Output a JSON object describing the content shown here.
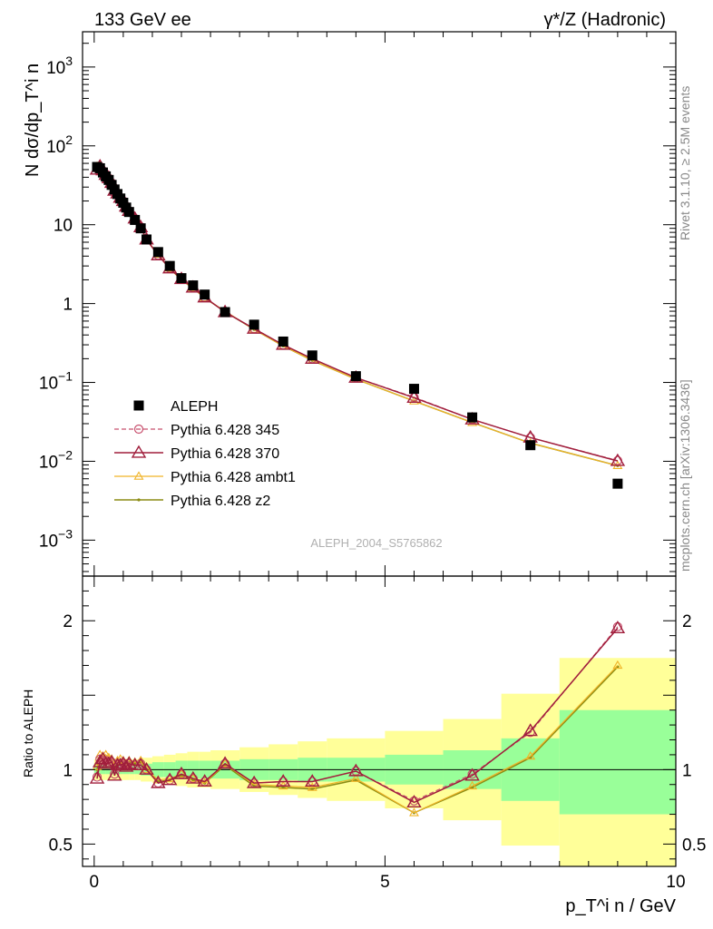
{
  "header": {
    "left_label": "133 GeV ee",
    "right_label": "γ*/Z (Hadronic)"
  },
  "side_labels": {
    "rivet": "Rivet 3.1.10, ≥ 2.5M events",
    "mcplots": "mcplots.cern.ch [arXiv:1306.3436]"
  },
  "watermark": "ALEPH_2004_S5765862",
  "colors": {
    "data": "#000000",
    "p345": "#c8506e",
    "p370": "#a01e3c",
    "ambt1": "#f0b428",
    "z2": "#8c8c14",
    "band_inner": "#99ff99",
    "band_outer": "#ffff99"
  },
  "chart_data": [
    {
      "type": "scatter",
      "panel": "main",
      "ylabel": "N dσ/dp_T^i n",
      "yscale": "log",
      "xlim": [
        -0.2,
        10.0
      ],
      "ylim": [
        0.00035,
        2800
      ],
      "ytick_labels": [
        "10^-3",
        "10^-2",
        "10^-1",
        "1",
        "10",
        "10^2",
        "10^3"
      ],
      "legend": {
        "placement": "lower-left",
        "entries": [
          "ALEPH",
          "Pythia 6.428 345",
          "Pythia 6.428 370",
          "Pythia 6.428 ambt1",
          "Pythia 6.428 z2"
        ]
      },
      "series": [
        {
          "name": "ALEPH",
          "x": [
            0.05,
            0.1,
            0.15,
            0.2,
            0.25,
            0.3,
            0.35,
            0.4,
            0.45,
            0.5,
            0.55,
            0.6,
            0.7,
            0.8,
            0.9,
            1.1,
            1.3,
            1.5,
            1.7,
            1.9,
            2.25,
            2.75,
            3.25,
            3.75,
            4.5,
            5.5,
            6.5,
            7.5,
            9.0
          ],
          "y": [
            54,
            52,
            46,
            41,
            37,
            32,
            28,
            24.5,
            21.5,
            19,
            16.5,
            14.5,
            11.5,
            9.0,
            6.5,
            4.5,
            3.0,
            2.1,
            1.7,
            1.3,
            0.78,
            0.54,
            0.33,
            0.22,
            0.12,
            0.083,
            0.036,
            0.016,
            0.0052
          ]
        },
        {
          "name": "Pythia 6.428 345",
          "x": [
            0.05,
            0.1,
            0.15,
            0.2,
            0.25,
            0.3,
            0.35,
            0.4,
            0.45,
            0.5,
            0.55,
            0.6,
            0.7,
            0.8,
            0.9,
            1.1,
            1.3,
            1.5,
            1.7,
            1.9,
            2.25,
            2.75,
            3.25,
            3.75,
            4.5,
            5.5,
            6.5,
            7.5,
            9.0
          ],
          "y": [
            51,
            54,
            48,
            44,
            39,
            34,
            28,
            25,
            22,
            20,
            17,
            15,
            12,
            9.4,
            6.5,
            4.1,
            2.8,
            2.05,
            1.6,
            1.2,
            0.78,
            0.48,
            0.3,
            0.2,
            0.115,
            0.065,
            0.034,
            0.02,
            0.0102
          ]
        },
        {
          "name": "Pythia 6.428 370",
          "x": [
            0.05,
            0.1,
            0.15,
            0.2,
            0.25,
            0.3,
            0.35,
            0.4,
            0.45,
            0.5,
            0.55,
            0.6,
            0.7,
            0.8,
            0.9,
            1.1,
            1.3,
            1.5,
            1.7,
            1.9,
            2.25,
            2.75,
            3.25,
            3.75,
            4.5,
            5.5,
            6.5,
            7.5,
            9.0
          ],
          "y": [
            50,
            55,
            49,
            43,
            39,
            34,
            27,
            25,
            22,
            20,
            17,
            15,
            12,
            9.3,
            6.5,
            4.1,
            2.8,
            2.05,
            1.6,
            1.2,
            0.78,
            0.48,
            0.3,
            0.2,
            0.115,
            0.064,
            0.034,
            0.02,
            0.0101
          ]
        },
        {
          "name": "Pythia 6.428 ambt1",
          "x": [
            0.05,
            0.1,
            0.15,
            0.2,
            0.25,
            0.3,
            0.35,
            0.4,
            0.45,
            0.5,
            0.55,
            0.6,
            0.7,
            0.8,
            0.9,
            1.1,
            1.3,
            1.5,
            1.7,
            1.9,
            2.25,
            2.75,
            3.25,
            3.75,
            4.5,
            5.5,
            6.5,
            7.5,
            9.0
          ],
          "y": [
            55,
            57,
            50,
            45,
            40,
            34,
            29,
            26,
            23,
            20,
            17,
            15,
            12,
            9.4,
            6.5,
            4.2,
            2.8,
            2.0,
            1.58,
            1.18,
            0.8,
            0.47,
            0.29,
            0.19,
            0.11,
            0.058,
            0.031,
            0.017,
            0.0088
          ]
        },
        {
          "name": "Pythia 6.428 z2",
          "x": [
            0.05,
            0.1,
            0.15,
            0.2,
            0.25,
            0.3,
            0.35,
            0.4,
            0.45,
            0.5,
            0.55,
            0.6,
            0.7,
            0.8,
            0.9,
            1.1,
            1.3,
            1.5,
            1.7,
            1.9,
            2.25,
            2.75,
            3.25,
            3.75,
            4.5,
            5.5,
            6.5,
            7.5,
            9.0
          ],
          "y": [
            54,
            56,
            49,
            44,
            40,
            34,
            28,
            25.5,
            22.5,
            20,
            17,
            15,
            12,
            9.3,
            6.5,
            4.1,
            2.8,
            2.0,
            1.57,
            1.18,
            0.79,
            0.47,
            0.29,
            0.19,
            0.11,
            0.058,
            0.031,
            0.017,
            0.0088
          ]
        }
      ]
    },
    {
      "type": "line",
      "panel": "ratio",
      "xlabel": "p_T^i n / GeV",
      "ylabel": "Ratio to ALEPH",
      "xlim": [
        -0.2,
        10.0
      ],
      "ylim": [
        0.35,
        2.3
      ],
      "xtick_labels": [
        "0",
        "5",
        "10"
      ],
      "ytick_labels": [
        "0.5",
        "1",
        "2"
      ],
      "reference_line": 1.0,
      "uncertainty_bands": {
        "edges": [
          0,
          0.1,
          0.2,
          0.3,
          0.4,
          0.5,
          0.6,
          0.7,
          0.8,
          1.0,
          1.2,
          1.4,
          1.6,
          1.8,
          2.0,
          2.5,
          3.0,
          3.5,
          4.0,
          5.0,
          6.0,
          7.0,
          8.0,
          10.0
        ],
        "inner_low": [
          0.97,
          0.97,
          0.97,
          0.97,
          0.97,
          0.97,
          0.97,
          0.97,
          0.96,
          0.95,
          0.95,
          0.94,
          0.94,
          0.94,
          0.94,
          0.93,
          0.93,
          0.92,
          0.92,
          0.9,
          0.87,
          0.79,
          0.7
        ],
        "inner_high": [
          1.03,
          1.03,
          1.03,
          1.03,
          1.03,
          1.03,
          1.03,
          1.03,
          1.04,
          1.05,
          1.05,
          1.06,
          1.06,
          1.06,
          1.06,
          1.07,
          1.07,
          1.08,
          1.08,
          1.1,
          1.13,
          1.21,
          1.4
        ],
        "outer_low": [
          0.93,
          0.93,
          0.93,
          0.93,
          0.93,
          0.93,
          0.93,
          0.93,
          0.92,
          0.91,
          0.9,
          0.89,
          0.88,
          0.88,
          0.87,
          0.85,
          0.83,
          0.81,
          0.79,
          0.74,
          0.66,
          0.49,
          0.35
        ],
        "outer_high": [
          1.07,
          1.07,
          1.07,
          1.07,
          1.07,
          1.07,
          1.07,
          1.07,
          1.08,
          1.09,
          1.1,
          1.11,
          1.12,
          1.12,
          1.13,
          1.15,
          1.17,
          1.19,
          1.21,
          1.26,
          1.34,
          1.51,
          1.75
        ]
      },
      "series": [
        {
          "name": "Pythia 6.428 345",
          "x": [
            0.05,
            0.1,
            0.15,
            0.2,
            0.25,
            0.3,
            0.35,
            0.4,
            0.45,
            0.5,
            0.55,
            0.6,
            0.7,
            0.8,
            0.9,
            1.1,
            1.3,
            1.5,
            1.7,
            1.9,
            2.25,
            2.75,
            3.25,
            3.75,
            4.5,
            5.5,
            6.5,
            7.5,
            9.0
          ],
          "y": [
            0.95,
            1.07,
            1.06,
            1.06,
            1.05,
            1.05,
            0.97,
            1.02,
            1.04,
            1.04,
            1.03,
            1.04,
            1.03,
            1.04,
            1.0,
            0.91,
            0.93,
            0.97,
            0.94,
            0.92,
            1.04,
            0.91,
            0.92,
            0.92,
            0.99,
            0.79,
            0.97,
            1.25,
            1.96
          ]
        },
        {
          "name": "Pythia 6.428 370",
          "x": [
            0.05,
            0.1,
            0.15,
            0.2,
            0.25,
            0.3,
            0.35,
            0.4,
            0.45,
            0.5,
            0.55,
            0.6,
            0.7,
            0.8,
            0.9,
            1.1,
            1.3,
            1.5,
            1.7,
            1.9,
            2.25,
            2.75,
            3.25,
            3.75,
            4.5,
            5.5,
            6.5,
            7.5,
            9.0
          ],
          "y": [
            0.94,
            1.05,
            1.07,
            1.04,
            1.04,
            1.05,
            0.96,
            1.03,
            1.03,
            1.04,
            1.02,
            1.04,
            1.03,
            1.03,
            1.0,
            0.91,
            0.93,
            0.97,
            0.94,
            0.92,
            1.04,
            0.91,
            0.92,
            0.92,
            0.99,
            0.78,
            0.96,
            1.26,
            1.95
          ]
        },
        {
          "name": "Pythia 6.428 ambt1",
          "x": [
            0.05,
            0.1,
            0.15,
            0.2,
            0.25,
            0.3,
            0.35,
            0.4,
            0.45,
            0.5,
            0.55,
            0.6,
            0.7,
            0.8,
            0.9,
            1.1,
            1.3,
            1.5,
            1.7,
            1.9,
            2.25,
            2.75,
            3.25,
            3.75,
            4.5,
            5.5,
            6.5,
            7.5,
            9.0
          ],
          "y": [
            1.02,
            1.1,
            1.09,
            1.1,
            1.08,
            1.07,
            1.03,
            1.06,
            1.07,
            1.06,
            1.04,
            1.06,
            1.05,
            1.06,
            1.0,
            0.93,
            0.94,
            0.97,
            0.94,
            0.91,
            1.04,
            0.9,
            0.89,
            0.88,
            0.94,
            0.71,
            0.89,
            1.09,
            1.7
          ]
        },
        {
          "name": "Pythia 6.428 z2",
          "x": [
            0.05,
            0.1,
            0.15,
            0.2,
            0.25,
            0.3,
            0.35,
            0.4,
            0.45,
            0.5,
            0.55,
            0.6,
            0.7,
            0.8,
            0.9,
            1.1,
            1.3,
            1.5,
            1.7,
            1.9,
            2.25,
            2.75,
            3.25,
            3.75,
            4.5,
            5.5,
            6.5,
            7.5,
            9.0
          ],
          "y": [
            1.0,
            1.08,
            1.07,
            1.08,
            1.07,
            1.06,
            1.02,
            1.04,
            1.05,
            1.05,
            1.03,
            1.05,
            1.04,
            1.05,
            1.0,
            0.92,
            0.93,
            0.96,
            0.93,
            0.91,
            1.03,
            0.89,
            0.88,
            0.87,
            0.93,
            0.71,
            0.88,
            1.08,
            1.69
          ]
        }
      ]
    }
  ]
}
